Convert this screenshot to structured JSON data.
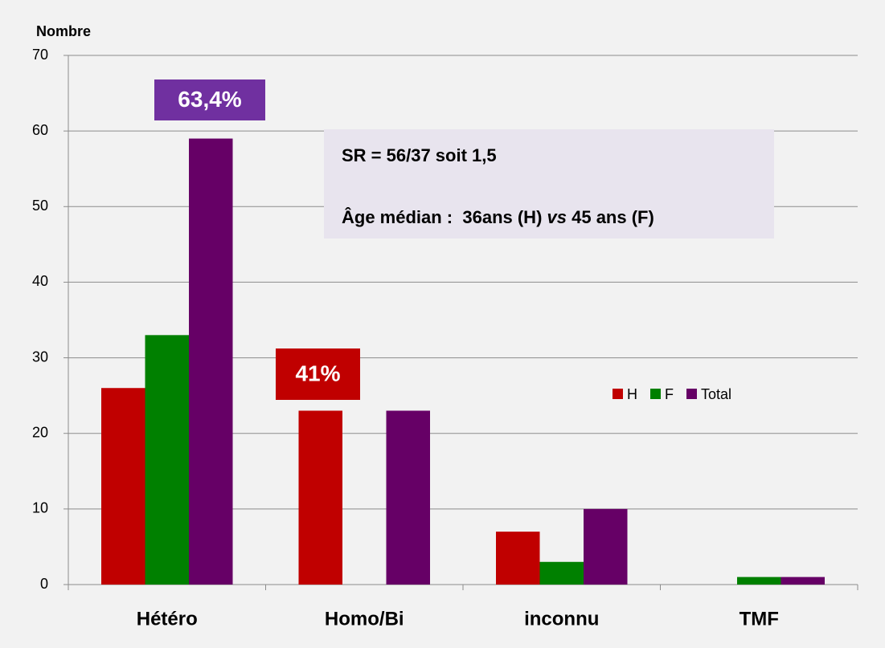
{
  "chart_data": {
    "type": "bar",
    "y_label": "Nombre",
    "categories": [
      "Hétéro",
      "Homo/Bi",
      "inconnu",
      "TMF"
    ],
    "series": [
      {
        "name": "H",
        "color": "#c00000",
        "values": [
          26,
          23,
          7,
          0
        ]
      },
      {
        "name": "F",
        "color": "#008000",
        "values": [
          33,
          0,
          3,
          1
        ]
      },
      {
        "name": "Total",
        "color": "#660066",
        "values": [
          59,
          23,
          10,
          1
        ]
      }
    ],
    "ylim": [
      0,
      70
    ],
    "yticks": [
      0,
      10,
      20,
      30,
      40,
      50,
      60,
      70
    ],
    "grid": true,
    "annotations": [
      {
        "text": "63,4%",
        "color": "#7030a0"
      },
      {
        "text": "41%",
        "color": "#c00000"
      }
    ],
    "note": {
      "line1": "SR = 56/37 soit 1,5",
      "line2": [
        "Âge médian :  36ans (H) ",
        "vs",
        " 45 ans (F)"
      ]
    }
  }
}
